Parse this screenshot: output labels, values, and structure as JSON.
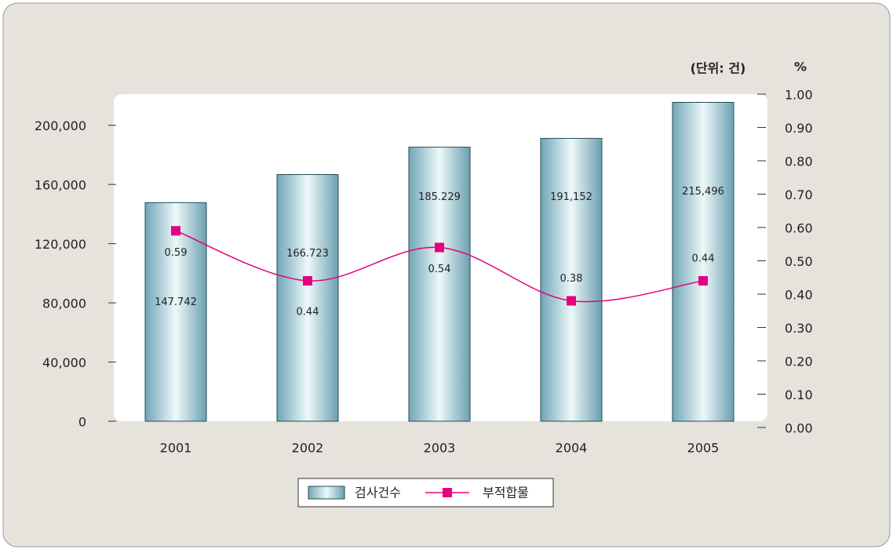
{
  "chart_data": {
    "type": "bar",
    "unit_label": "(단위: 건)",
    "y2_label": "%",
    "categories": [
      "2001",
      "2002",
      "2003",
      "2004",
      "2005"
    ],
    "series": [
      {
        "name": "검사건수",
        "type": "bar",
        "values": [
          147742,
          166723,
          185229,
          191152,
          215496
        ],
        "value_labels": [
          "147.742",
          "166.723",
          "185.229",
          "191,152",
          "215,496"
        ]
      },
      {
        "name": "부적합물",
        "type": "line",
        "axis": "y2",
        "color": "#e6007e",
        "values": [
          0.59,
          0.44,
          0.54,
          0.38,
          0.44
        ]
      }
    ],
    "ylim": [
      0,
      220000
    ],
    "yticks": [
      0,
      {
        "value": 40000,
        "label": "40,000"
      },
      {
        "value": 80000,
        "label": "80,000"
      },
      {
        "value": 120000,
        "label": "120,000"
      },
      {
        "value": 160000,
        "label": "160,000"
      },
      {
        "value": 200000,
        "label": "200,000"
      }
    ],
    "y2lim": [
      0,
      1
    ],
    "y2ticks": [
      {
        "value": 0,
        "label": "0.00"
      },
      {
        "value": 0.1,
        "label": "0.10"
      },
      {
        "value": 0.2,
        "label": "0.20"
      },
      {
        "value": 0.3,
        "label": "0.30"
      },
      {
        "value": 0.4,
        "label": "0.40"
      },
      {
        "value": 0.5,
        "label": "0.50"
      },
      {
        "value": 0.6,
        "label": "0.60"
      },
      {
        "value": 0.7,
        "label": "0.70"
      },
      {
        "value": 0.8,
        "label": "0.80"
      },
      {
        "value": 0.9,
        "label": "0.90"
      },
      {
        "value": 1,
        "label": "1.00"
      }
    ]
  }
}
